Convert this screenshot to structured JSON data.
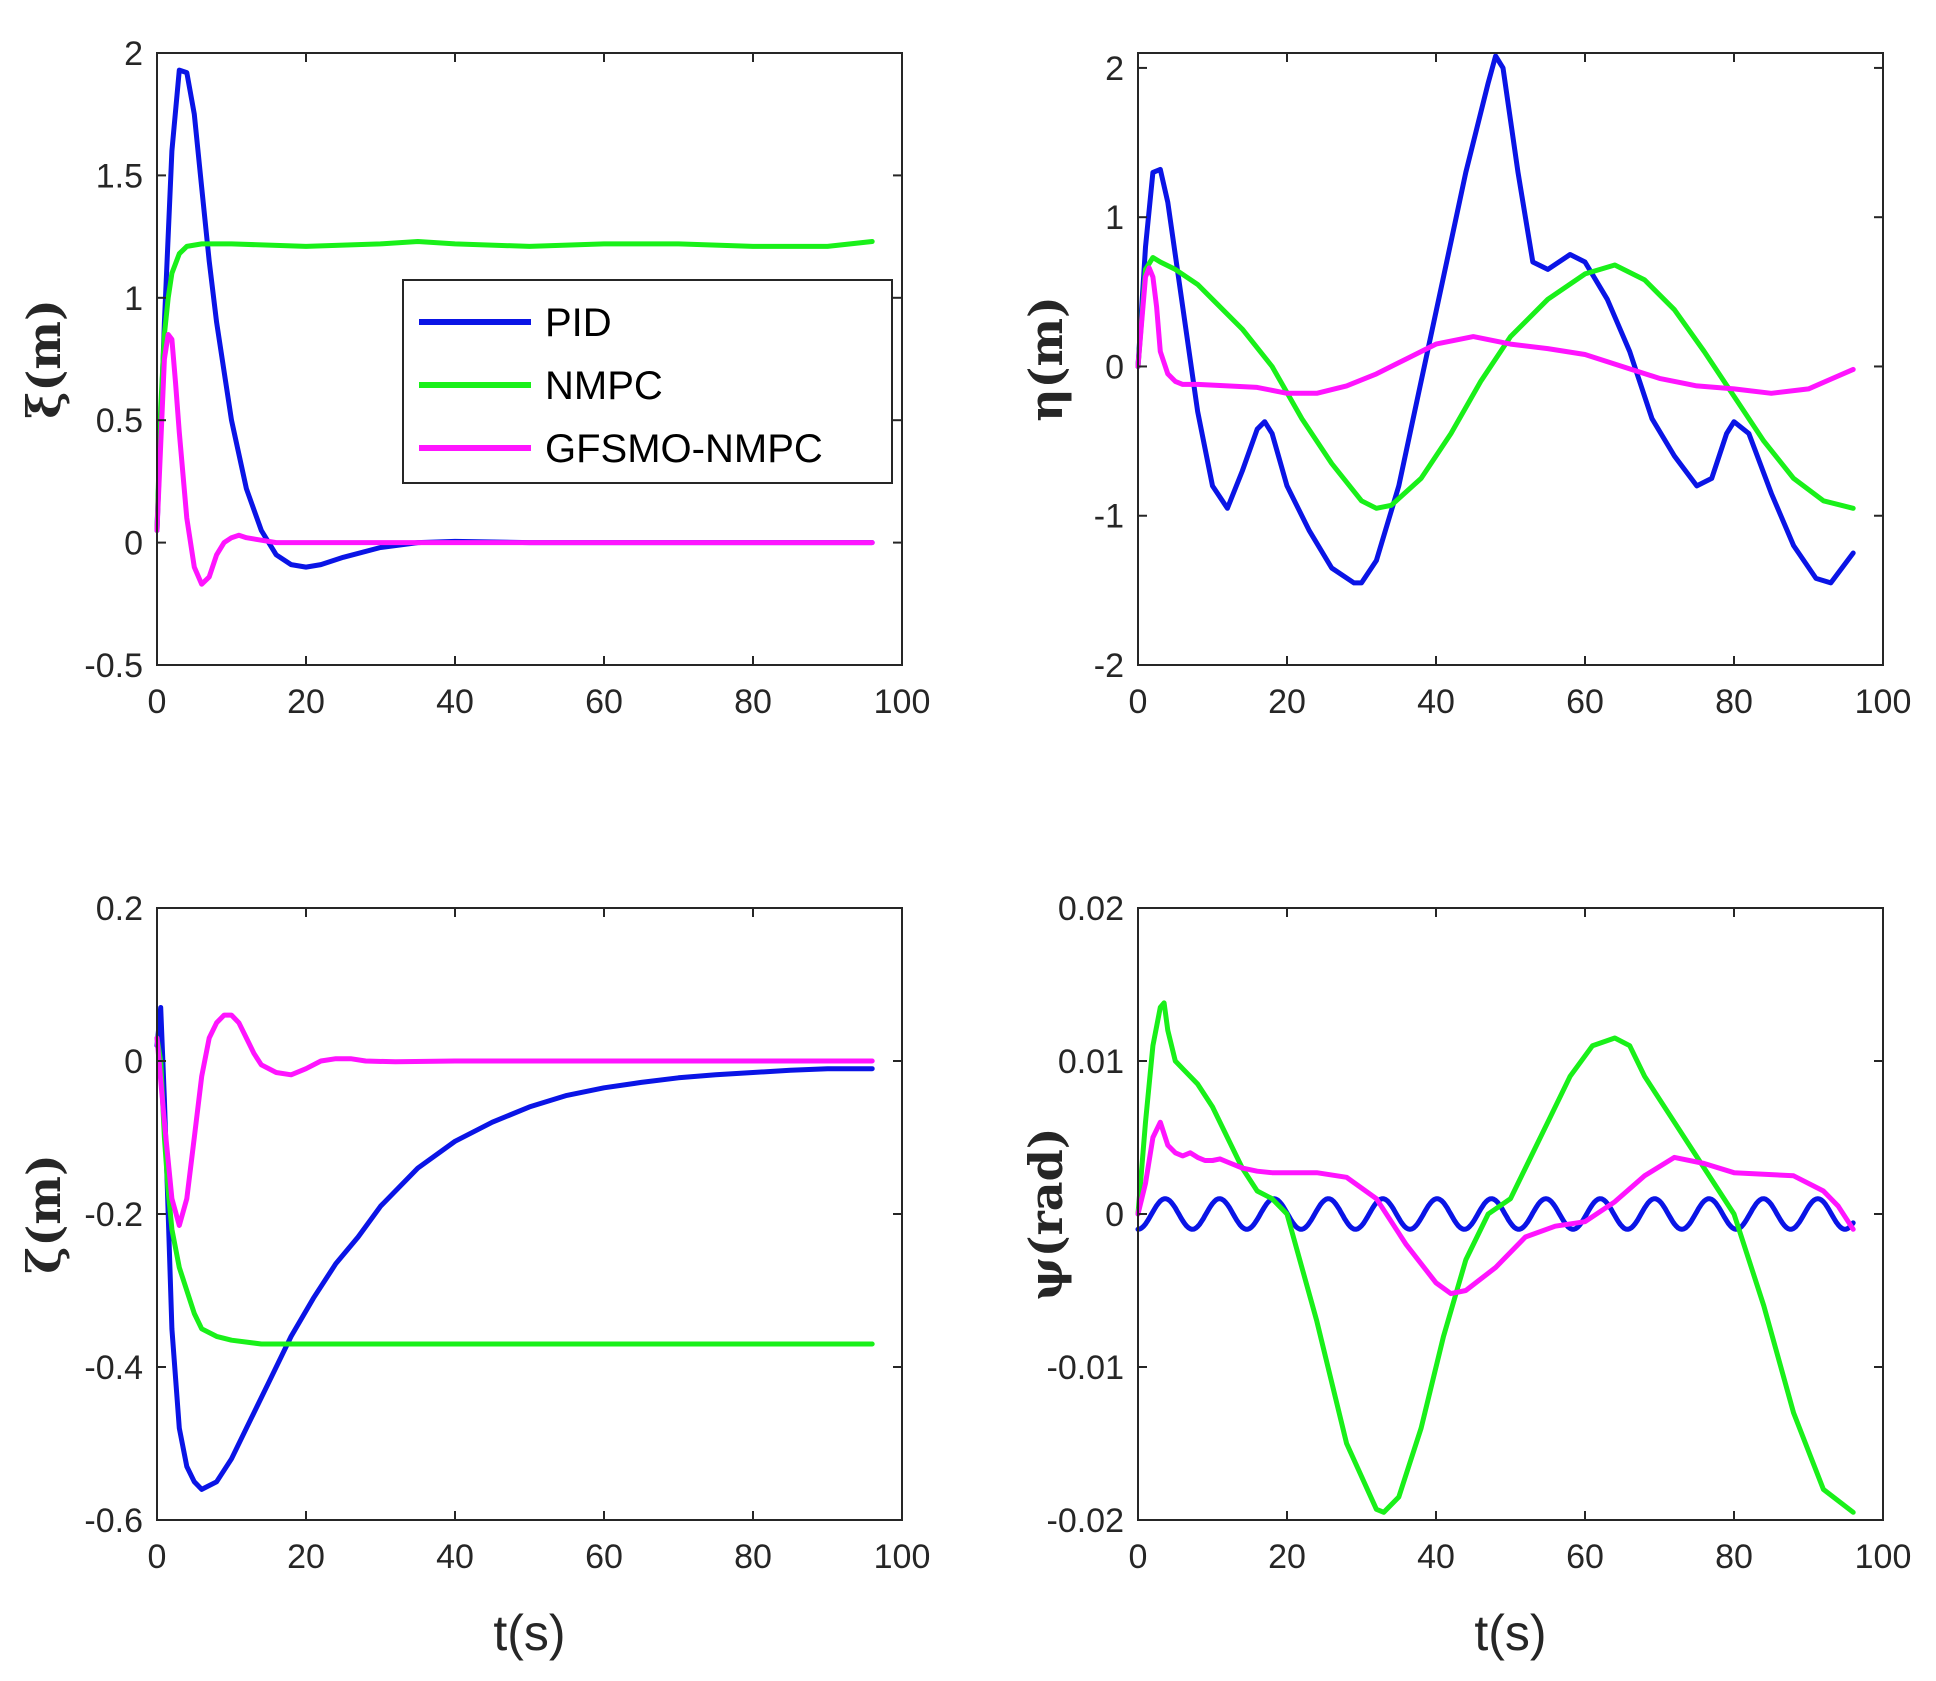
{
  "colors": {
    "PID": "#0a14e6",
    "NMPC": "#19f019",
    "GFSMO-NMPC": "#ff14ff",
    "axis": "#262626"
  },
  "legend": {
    "entries": [
      "PID",
      "NMPC",
      "GFSMO-NMPC"
    ],
    "placement": "inside upper-right of top-left panel"
  },
  "chart_data": [
    {
      "type": "line",
      "ylabel": "ξ(m)",
      "xlabel": "",
      "xlim": [
        0,
        100
      ],
      "ylim": [
        -0.5,
        2
      ],
      "xticks": [
        "0",
        "20",
        "40",
        "60",
        "80",
        "100"
      ],
      "yticks": [
        "-0.5",
        "0",
        "0.5",
        "1",
        "1.5",
        "2"
      ],
      "ytick_values": [
        -0.5,
        0,
        0.5,
        1,
        1.5,
        2
      ],
      "series": [
        {
          "name": "PID",
          "x": [
            0,
            1,
            2,
            3,
            4,
            5,
            6,
            7,
            8,
            10,
            12,
            14,
            16,
            18,
            20,
            22,
            25,
            30,
            35,
            40,
            50,
            60,
            70,
            80,
            96
          ],
          "y": [
            0.05,
            0.9,
            1.6,
            1.93,
            1.92,
            1.75,
            1.45,
            1.15,
            0.9,
            0.5,
            0.22,
            0.05,
            -0.05,
            -0.09,
            -0.1,
            -0.09,
            -0.06,
            -0.02,
            0,
            0.005,
            0,
            0,
            0,
            0,
            0
          ]
        },
        {
          "name": "NMPC",
          "x": [
            0,
            0.5,
            1,
            1.5,
            2,
            3,
            4,
            6,
            10,
            20,
            30,
            35,
            40,
            50,
            60,
            70,
            80,
            90,
            96
          ],
          "y": [
            0.05,
            0.55,
            0.85,
            1.0,
            1.1,
            1.18,
            1.21,
            1.22,
            1.22,
            1.21,
            1.22,
            1.23,
            1.22,
            1.21,
            1.22,
            1.22,
            1.21,
            1.21,
            1.23
          ]
        },
        {
          "name": "GFSMO-NMPC",
          "x": [
            0,
            0.5,
            1,
            1.5,
            2,
            2.5,
            3,
            4,
            5,
            6,
            7,
            8,
            9,
            10,
            11,
            12,
            14,
            16,
            18,
            20,
            30,
            40,
            60,
            80,
            96
          ],
          "y": [
            0.05,
            0.4,
            0.75,
            0.85,
            0.83,
            0.65,
            0.45,
            0.1,
            -0.1,
            -0.17,
            -0.14,
            -0.05,
            0,
            0.02,
            0.03,
            0.02,
            0.01,
            0,
            0,
            0,
            0,
            0,
            0,
            0,
            0
          ]
        }
      ]
    },
    {
      "type": "line",
      "ylabel": "η(m)",
      "xlabel": "",
      "xlim": [
        0,
        100
      ],
      "ylim": [
        -2,
        2.1
      ],
      "xticks": [
        "0",
        "20",
        "40",
        "60",
        "80",
        "100"
      ],
      "yticks": [
        "-2",
        "-1",
        "0",
        "1",
        "2"
      ],
      "ytick_values": [
        -2,
        -1,
        0,
        1,
        2
      ],
      "series": [
        {
          "name": "PID",
          "x": [
            0,
            1,
            2,
            3,
            4,
            6,
            8,
            10,
            12,
            14,
            16,
            17,
            18,
            20,
            23,
            26,
            29,
            30,
            32,
            35,
            38,
            41,
            44,
            47,
            48,
            49,
            51,
            53,
            55,
            58,
            60,
            63,
            66,
            69,
            72,
            75,
            77,
            79,
            80,
            82,
            85,
            88,
            91,
            93,
            96
          ],
          "y": [
            0,
            0.8,
            1.3,
            1.32,
            1.1,
            0.4,
            -0.3,
            -0.8,
            -0.95,
            -0.7,
            -0.42,
            -0.37,
            -0.45,
            -0.8,
            -1.1,
            -1.35,
            -1.45,
            -1.45,
            -1.3,
            -0.8,
            -0.1,
            0.6,
            1.3,
            1.9,
            2.08,
            2.0,
            1.3,
            0.7,
            0.65,
            0.75,
            0.7,
            0.45,
            0.1,
            -0.35,
            -0.6,
            -0.8,
            -0.75,
            -0.45,
            -0.37,
            -0.45,
            -0.85,
            -1.2,
            -1.42,
            -1.45,
            -1.25
          ]
        },
        {
          "name": "NMPC",
          "x": [
            0,
            1,
            2,
            3,
            5,
            8,
            10,
            14,
            18,
            22,
            26,
            30,
            32,
            34,
            38,
            42,
            46,
            50,
            55,
            60,
            64,
            68,
            72,
            76,
            80,
            84,
            88,
            92,
            96
          ],
          "y": [
            0,
            0.65,
            0.73,
            0.7,
            0.65,
            0.55,
            0.45,
            0.25,
            0,
            -0.35,
            -0.65,
            -0.9,
            -0.95,
            -0.93,
            -0.75,
            -0.45,
            -0.1,
            0.2,
            0.45,
            0.62,
            0.68,
            0.58,
            0.38,
            0.1,
            -0.2,
            -0.5,
            -0.75,
            -0.9,
            -0.95
          ]
        },
        {
          "name": "GFSMO-NMPC",
          "x": [
            0,
            0.5,
            1,
            1.5,
            2,
            2.5,
            3,
            4,
            5,
            6,
            8,
            12,
            16,
            20,
            24,
            28,
            32,
            36,
            40,
            45,
            50,
            55,
            60,
            65,
            70,
            75,
            80,
            85,
            90,
            96
          ],
          "y": [
            0,
            0.3,
            0.6,
            0.66,
            0.6,
            0.4,
            0.1,
            -0.05,
            -0.1,
            -0.12,
            -0.12,
            -0.13,
            -0.14,
            -0.18,
            -0.18,
            -0.13,
            -0.05,
            0.05,
            0.15,
            0.2,
            0.15,
            0.12,
            0.08,
            0,
            -0.08,
            -0.13,
            -0.15,
            -0.18,
            -0.15,
            -0.02
          ]
        }
      ]
    },
    {
      "type": "line",
      "ylabel": "ζ(m)",
      "xlabel": "t(s)",
      "xlim": [
        0,
        100
      ],
      "ylim": [
        -0.6,
        0.2
      ],
      "xticks": [
        "0",
        "20",
        "40",
        "60",
        "80",
        "100"
      ],
      "yticks": [
        "-0.6",
        "-0.4",
        "-0.2",
        "0",
        "0.2"
      ],
      "ytick_values": [
        -0.6,
        -0.4,
        -0.2,
        0,
        0.2
      ],
      "series": [
        {
          "name": "PID",
          "x": [
            0,
            0.5,
            1,
            1.5,
            2,
            3,
            4,
            5,
            6,
            8,
            10,
            12,
            15,
            18,
            21,
            24,
            27,
            30,
            35,
            40,
            45,
            50,
            55,
            60,
            65,
            70,
            75,
            80,
            85,
            90,
            96
          ],
          "y": [
            0.02,
            0.07,
            -0.05,
            -0.2,
            -0.35,
            -0.48,
            -0.53,
            -0.55,
            -0.56,
            -0.55,
            -0.52,
            -0.48,
            -0.42,
            -0.36,
            -0.31,
            -0.265,
            -0.23,
            -0.19,
            -0.14,
            -0.105,
            -0.08,
            -0.06,
            -0.045,
            -0.035,
            -0.028,
            -0.022,
            -0.018,
            -0.015,
            -0.012,
            -0.01,
            -0.01
          ]
        },
        {
          "name": "NMPC",
          "x": [
            0,
            0.5,
            1,
            1.5,
            2,
            3,
            4,
            5,
            6,
            8,
            10,
            14,
            20,
            30,
            40,
            60,
            80,
            96
          ],
          "y": [
            0.03,
            0,
            -0.1,
            -0.17,
            -0.22,
            -0.27,
            -0.3,
            -0.33,
            -0.35,
            -0.36,
            -0.365,
            -0.37,
            -0.37,
            -0.37,
            -0.37,
            -0.37,
            -0.37,
            -0.37
          ]
        },
        {
          "name": "GFSMO-NMPC",
          "x": [
            0,
            1,
            2,
            3,
            4,
            5,
            6,
            7,
            8,
            9,
            10,
            11,
            12,
            13,
            14,
            16,
            18,
            20,
            22,
            24,
            26,
            28,
            32,
            40,
            60,
            80,
            96
          ],
          "y": [
            0.03,
            -0.08,
            -0.18,
            -0.215,
            -0.18,
            -0.1,
            -0.02,
            0.03,
            0.05,
            0.06,
            0.06,
            0.05,
            0.03,
            0.01,
            -0.005,
            -0.015,
            -0.018,
            -0.01,
            0,
            0.003,
            0.003,
            0,
            -0.001,
            0,
            0,
            0,
            0
          ]
        }
      ]
    },
    {
      "type": "line",
      "ylabel": "ψ(rad)",
      "xlabel": "t(s)",
      "xlim": [
        0,
        100
      ],
      "ylim": [
        -0.02,
        0.02
      ],
      "xticks": [
        "0",
        "20",
        "40",
        "60",
        "80",
        "100"
      ],
      "yticks": [
        "-0.02",
        "-0.01",
        "0",
        "0.01",
        "0.02"
      ],
      "ytick_values": [
        -0.02,
        -0.01,
        0,
        0.01,
        0.02
      ],
      "pid_oscillation": {
        "amplitude": 0.001,
        "period_s": 7.3,
        "t_end": 96
      },
      "series": [
        {
          "name": "PID",
          "x": [
            0,
            96
          ],
          "y": [
            0,
            0
          ]
        },
        {
          "name": "NMPC",
          "x": [
            0,
            1,
            2,
            3,
            3.5,
            4,
            5,
            6,
            8,
            10,
            12,
            14,
            16,
            18,
            20,
            24,
            28,
            32,
            33,
            35,
            38,
            41,
            44,
            47,
            50,
            52,
            55,
            58,
            61,
            64,
            66,
            68,
            72,
            76,
            80,
            84,
            88,
            92,
            96
          ],
          "y": [
            0,
            0.006,
            0.011,
            0.0135,
            0.0138,
            0.012,
            0.01,
            0.0095,
            0.0085,
            0.007,
            0.005,
            0.003,
            0.0015,
            0.001,
            0,
            -0.007,
            -0.015,
            -0.0193,
            -0.0195,
            -0.0185,
            -0.014,
            -0.008,
            -0.003,
            0,
            0.001,
            0.003,
            0.006,
            0.009,
            0.011,
            0.0115,
            0.011,
            0.009,
            0.006,
            0.003,
            0,
            -0.006,
            -0.013,
            -0.018,
            -0.0195
          ]
        },
        {
          "name": "GFSMO-NMPC",
          "x": [
            0,
            1,
            2,
            3,
            4,
            5,
            6,
            7,
            8,
            9,
            10,
            11,
            12,
            14,
            16,
            18,
            20,
            24,
            28,
            32,
            36,
            40,
            42,
            44,
            48,
            52,
            56,
            60,
            64,
            68,
            72,
            76,
            80,
            84,
            88,
            92,
            94,
            96
          ],
          "y": [
            0,
            0.002,
            0.005,
            0.006,
            0.0045,
            0.004,
            0.0038,
            0.004,
            0.0037,
            0.0035,
            0.0035,
            0.0036,
            0.0034,
            0.003,
            0.0028,
            0.0027,
            0.0027,
            0.0027,
            0.0024,
            0.001,
            -0.002,
            -0.0045,
            -0.0052,
            -0.005,
            -0.0035,
            -0.0015,
            -0.0008,
            -0.0005,
            0.0008,
            0.0025,
            0.0037,
            0.0033,
            0.0027,
            0.0026,
            0.0025,
            0.0015,
            0.0005,
            -0.001
          ]
        }
      ]
    }
  ]
}
